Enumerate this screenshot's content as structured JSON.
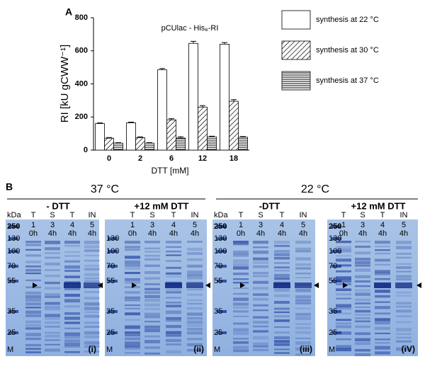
{
  "chart_data": {
    "type": "bar",
    "panel_label": "A",
    "annotation": "pCUlac - His₆-RI",
    "x_label": "DTT [mM]",
    "y_label": "RI [kU gCWW⁻¹]",
    "categories": [
      "0",
      "2",
      "6",
      "12",
      "18"
    ],
    "ylim": [
      0,
      800
    ],
    "yticks": [
      0,
      200,
      400,
      600,
      800
    ],
    "series": [
      {
        "name": "synthesis at 22 °C",
        "color": "#ffffff",
        "pattern": "none",
        "values": [
          160,
          165,
          485,
          645,
          640
        ],
        "errors": [
          4,
          4,
          8,
          12,
          10
        ]
      },
      {
        "name": "synthesis at 30 °C",
        "color": "#000000",
        "pattern": "diagonal",
        "values": [
          72,
          75,
          183,
          260,
          295
        ],
        "errors": [
          4,
          5,
          7,
          9,
          10
        ]
      },
      {
        "name": "synthesis at 37 °C",
        "color": "#000000",
        "pattern": "horizontal",
        "values": [
          42,
          42,
          73,
          80,
          78
        ],
        "errors": [
          3,
          3,
          8,
          4,
          4
        ]
      }
    ]
  },
  "panel_b": {
    "label": "B",
    "groups": [
      {
        "temperature": "37 °C",
        "gels": [
          {
            "title": "- DTT",
            "kda": "kDa",
            "markers": [
              "250",
              "130",
              "100",
              "70",
              "55",
              "35",
              "25",
              "M"
            ],
            "tag": "(i)",
            "lanes": [
              {
                "type": "T",
                "number": "1",
                "time": "0h"
              },
              {
                "type": "S",
                "number": "3",
                "time": "4h"
              },
              {
                "type": "T",
                "number": "4",
                "time": "4h"
              },
              {
                "type": "IN",
                "number": "5",
                "time": "4h"
              }
            ]
          },
          {
            "title": "+12 mM DTT",
            "markers": [
              "130",
              "100",
              "70",
              "55",
              "35",
              "25",
              "M"
            ],
            "tag": "(ii)",
            "lanes": [
              {
                "type": "T",
                "number": "1",
                "time": "0h"
              },
              {
                "type": "S",
                "number": "3",
                "time": "4h"
              },
              {
                "type": "T",
                "number": "4",
                "time": "4h"
              },
              {
                "type": "IN",
                "number": "5",
                "time": "4h"
              }
            ]
          }
        ]
      },
      {
        "temperature": "22 °C",
        "gels": [
          {
            "title": "-DTT",
            "kda": "kDa",
            "markers": [
              "250",
              "130",
              "100",
              "70",
              "55",
              "35",
              "25",
              "M"
            ],
            "tag": "(iii)",
            "lanes": [
              {
                "type": "T",
                "number": "1",
                "time": "0h"
              },
              {
                "type": "S",
                "number": "3",
                "time": "4h"
              },
              {
                "type": "T",
                "number": "4",
                "time": "4h"
              },
              {
                "type": "IN",
                "number": "5",
                "time": "4h"
              }
            ]
          },
          {
            "title": "+12 mM DTT",
            "markers": [
              "250",
              "130",
              "100",
              "70",
              "55",
              "35",
              "25",
              "M"
            ],
            "tag": "(iV)",
            "lanes": [
              {
                "type": "T",
                "number": "1",
                "time": "0h"
              },
              {
                "type": "S",
                "number": "3",
                "time": "4h"
              },
              {
                "type": "T",
                "number": "4",
                "time": "4h"
              },
              {
                "type": "IN",
                "number": "5",
                "time": "4h"
              }
            ]
          }
        ]
      }
    ]
  }
}
